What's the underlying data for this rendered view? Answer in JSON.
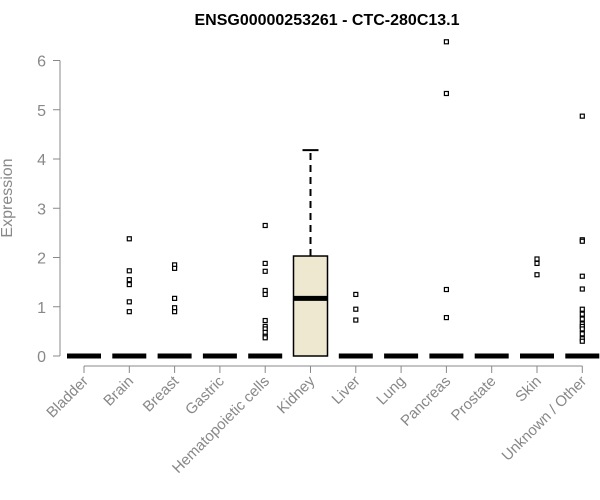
{
  "chart_data": {
    "type": "box",
    "title": "ENSG00000253261 - CTC-280C13.1",
    "xlabel": "",
    "ylabel": "Expression",
    "ylim": [
      0,
      6.4
    ],
    "yticks": [
      0,
      1,
      2,
      3,
      4,
      5,
      6
    ],
    "categories": [
      "Bladder",
      "Brain",
      "Breast",
      "Gastric",
      "Hematopoietic cells",
      "Kidney",
      "Liver",
      "Lung",
      "Pancreas",
      "Prostate",
      "Skin",
      "Unknown / Other"
    ],
    "boxes": [
      {
        "category": "Bladder",
        "q1": 0,
        "median": 0,
        "q3": 0,
        "whisker_low": 0,
        "whisker_high": 0,
        "outliers": []
      },
      {
        "category": "Brain",
        "q1": 0,
        "median": 0,
        "q3": 0,
        "whisker_low": 0,
        "whisker_high": 0,
        "outliers": [
          2.38,
          1.73,
          1.55,
          1.45,
          1.1,
          0.9
        ]
      },
      {
        "category": "Breast",
        "q1": 0,
        "median": 0,
        "q3": 0,
        "whisker_low": 0,
        "whisker_high": 0,
        "outliers": [
          1.85,
          1.78,
          1.17,
          0.98,
          0.9
        ]
      },
      {
        "category": "Gastric",
        "q1": 0,
        "median": 0,
        "q3": 0,
        "whisker_low": 0,
        "whisker_high": 0,
        "outliers": []
      },
      {
        "category": "Hematopoietic cells",
        "q1": 0,
        "median": 0,
        "q3": 0,
        "whisker_low": 0,
        "whisker_high": 0,
        "outliers": [
          2.65,
          1.88,
          1.72,
          1.33,
          1.25,
          0.72,
          0.6,
          0.55,
          0.48,
          0.4,
          0.37
        ]
      },
      {
        "category": "Kidney",
        "q1": 0,
        "median": 1.17,
        "q3": 2.03,
        "whisker_low": 0,
        "whisker_high": 4.18,
        "outliers": []
      },
      {
        "category": "Liver",
        "q1": 0,
        "median": 0,
        "q3": 0,
        "whisker_low": 0,
        "whisker_high": 0,
        "outliers": [
          1.25,
          0.95,
          0.73
        ]
      },
      {
        "category": "Lung",
        "q1": 0,
        "median": 0,
        "q3": 0,
        "whisker_low": 0,
        "whisker_high": 0,
        "outliers": []
      },
      {
        "category": "Pancreas",
        "q1": 0,
        "median": 0,
        "q3": 0,
        "whisker_low": 0,
        "whisker_high": 0,
        "outliers": [
          6.38,
          5.33,
          1.35,
          0.78
        ]
      },
      {
        "category": "Prostate",
        "q1": 0,
        "median": 0,
        "q3": 0,
        "whisker_low": 0,
        "whisker_high": 0,
        "outliers": []
      },
      {
        "category": "Skin",
        "q1": 0,
        "median": 0,
        "q3": 0,
        "whisker_low": 0,
        "whisker_high": 0,
        "outliers": [
          1.97,
          1.88,
          1.65
        ]
      },
      {
        "category": "Unknown / Other",
        "q1": 0,
        "median": 0,
        "q3": 0,
        "whisker_low": 0,
        "whisker_high": 0,
        "outliers": [
          4.87,
          2.36,
          2.33,
          1.62,
          1.36,
          0.95,
          0.85,
          0.75,
          0.65,
          0.6,
          0.55,
          0.45,
          0.35,
          0.3
        ]
      }
    ],
    "colors": {
      "box_fill": "#efe8d0",
      "box_stroke": "#000000",
      "axis": "#888888",
      "text": "#888888",
      "title": "#000000"
    },
    "grid": false,
    "legend": "none"
  }
}
